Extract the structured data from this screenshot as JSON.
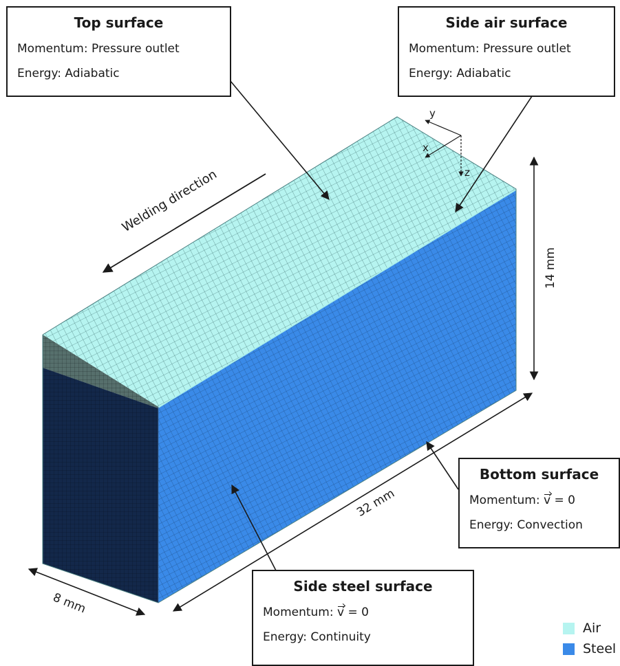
{
  "callouts": {
    "top": {
      "title": "Top surface",
      "momentum": "Momentum: Pressure outlet",
      "energy": "Energy: Adiabatic"
    },
    "side_air": {
      "title": "Side air surface",
      "momentum": "Momentum: Pressure outlet",
      "energy": "Energy: Adiabatic"
    },
    "bottom": {
      "title": "Bottom surface",
      "momentum_prefix": "Momentum: ",
      "momentum_vec": "v",
      "momentum_suffix": " = 0",
      "energy": "Energy: Convection"
    },
    "side_steel": {
      "title": "Side steel surface",
      "momentum_prefix": "Momentum: ",
      "momentum_vec": "v",
      "momentum_suffix": " = 0",
      "energy": "Energy: Continuity"
    }
  },
  "labels": {
    "welding_direction": "Welding direction",
    "length": "32 mm",
    "height": "14 mm",
    "width": "8 mm"
  },
  "axes": {
    "x": "x",
    "y": "y",
    "z": "z"
  },
  "legend": [
    {
      "label": "Air",
      "color": "#b6f4f0"
    },
    {
      "label": "Steel",
      "color": "#3a8ae8"
    }
  ],
  "colors": {
    "air_top": "#b6f4f0",
    "air_side": "#a7efea",
    "air_front": "#4f6361",
    "steel_side": "#3a8ae8",
    "steel_front": "#13284a",
    "mesh": "#1d3b40"
  }
}
